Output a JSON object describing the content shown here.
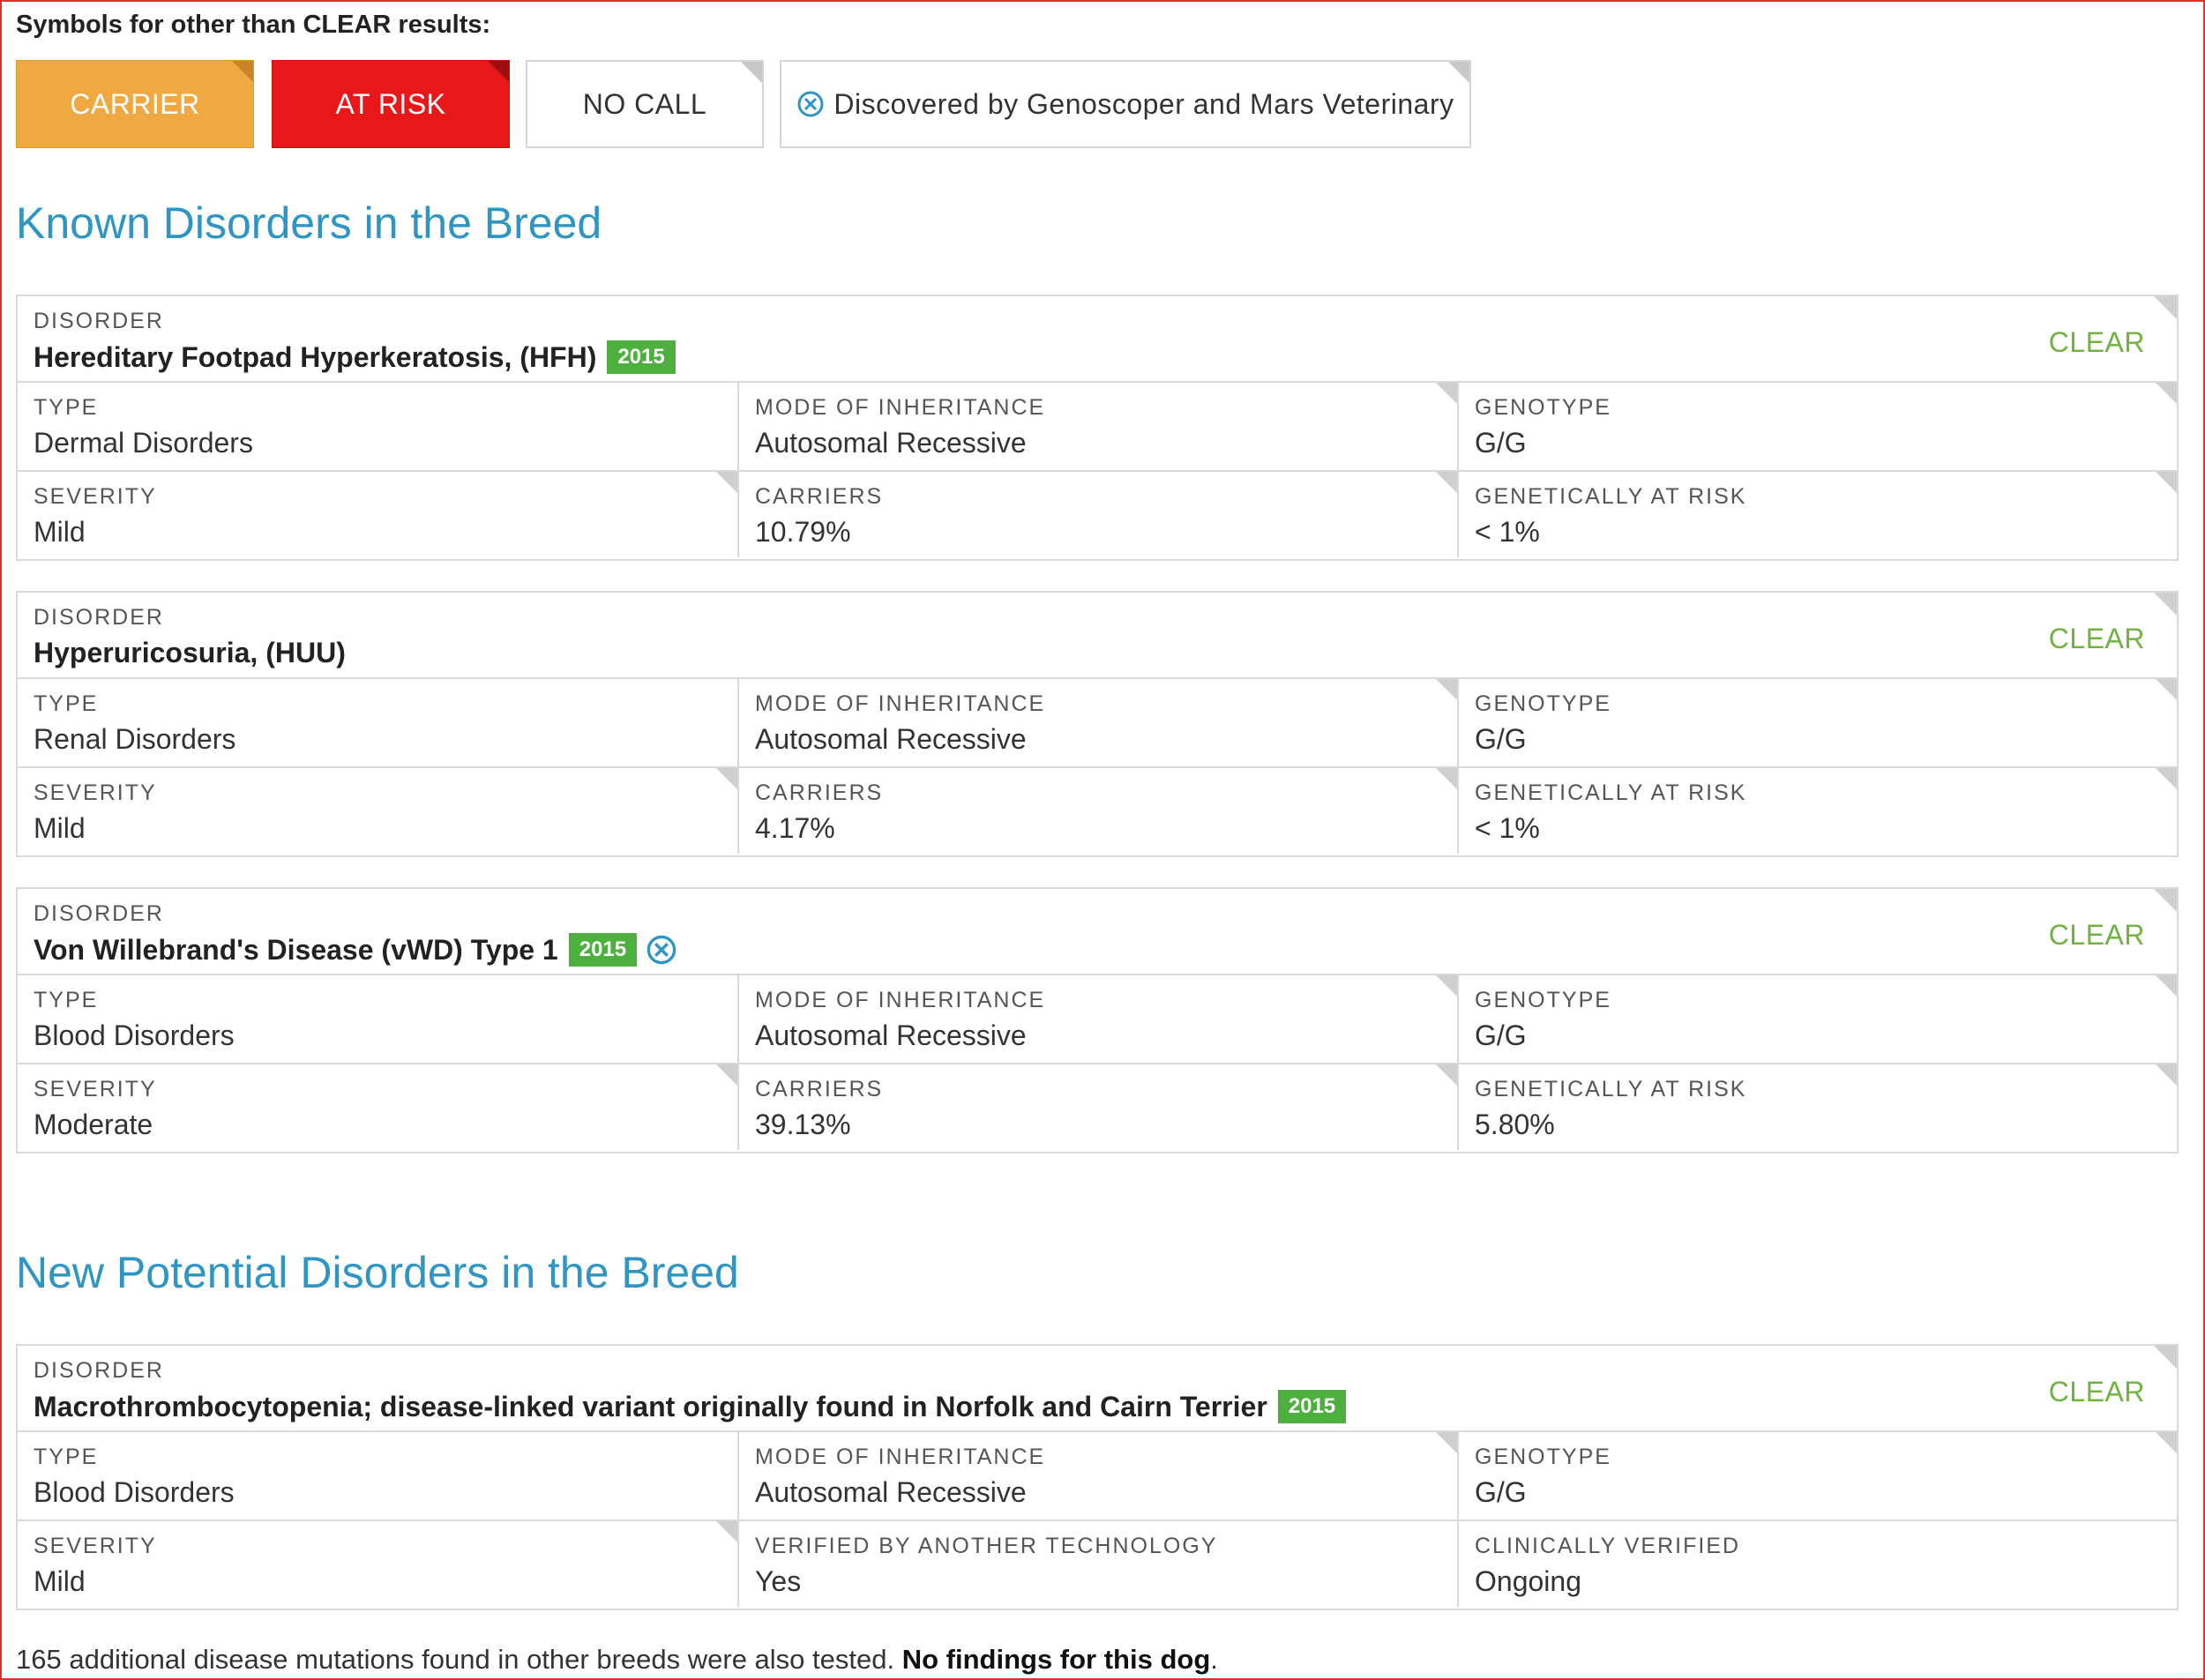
{
  "legend": {
    "title": "Symbols for other than CLEAR results:",
    "carrier": "CARRIER",
    "at_risk": "AT RISK",
    "no_call": "NO CALL",
    "discovered": "Discovered by Genoscoper and Mars Veterinary"
  },
  "colors": {
    "carrier": "#f0a942",
    "at_risk": "#e8181a",
    "section_title": "#2f95c2",
    "clear": "#6fb43f",
    "badge": "#4caf3e",
    "frame": "#d9362b"
  },
  "known_section": {
    "title": "Known Disorders in the Breed"
  },
  "new_section": {
    "title": "New Potential Disorders in the Breed"
  },
  "labels": {
    "disorder": "DISORDER",
    "type": "TYPE",
    "mode": "MODE OF INHERITANCE",
    "genotype": "GENOTYPE",
    "severity": "SEVERITY",
    "carriers": "CARRIERS",
    "genetically_at_risk": "GENETICALLY AT RISK",
    "verified_other": "VERIFIED BY ANOTHER TECHNOLOGY",
    "clinically_verified": "CLINICALLY VERIFIED"
  },
  "known_disorders": [
    {
      "name": "Hereditary Footpad Hyperkeratosis, (HFH)",
      "badge": "2015",
      "status": "CLEAR",
      "type": "Dermal Disorders",
      "mode": "Autosomal Recessive",
      "genotype": "G/G",
      "severity": "Mild",
      "carriers": "10.79%",
      "at_risk": "< 1%"
    },
    {
      "name": "Hyperuricosuria, (HUU)",
      "badge": "",
      "status": "CLEAR",
      "type": "Renal Disorders",
      "mode": "Autosomal Recessive",
      "genotype": "G/G",
      "severity": "Mild",
      "carriers": "4.17%",
      "at_risk": "< 1%"
    },
    {
      "name": "Von Willebrand's Disease (vWD) Type 1",
      "badge": "2015",
      "discovered_icon": "discovered-icon",
      "status": "CLEAR",
      "type": "Blood Disorders",
      "mode": "Autosomal Recessive",
      "genotype": "G/G",
      "severity": "Moderate",
      "carriers": "39.13%",
      "at_risk": "5.80%"
    }
  ],
  "new_disorders": [
    {
      "name": "Macrothrombocytopenia; disease-linked variant originally found in Norfolk and Cairn Terrier",
      "badge": "2015",
      "status": "CLEAR",
      "type": "Blood Disorders",
      "mode": "Autosomal Recessive",
      "genotype": "G/G",
      "severity": "Mild",
      "verified_other": "Yes",
      "clinically_verified": "Ongoing"
    }
  ],
  "footer": {
    "text": "165 additional disease mutations found in other breeds were also tested.",
    "bold": "No findings for this dog",
    "end": "."
  }
}
